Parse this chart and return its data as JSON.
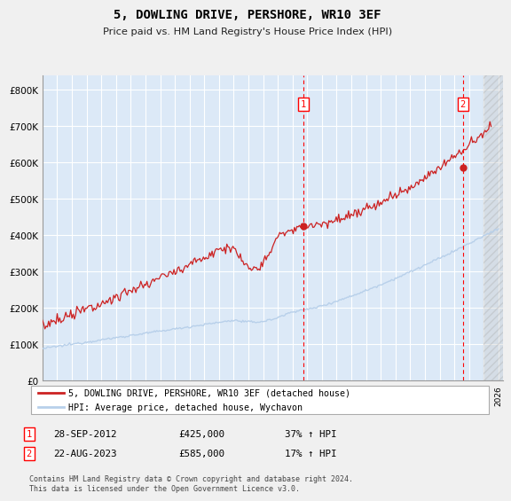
{
  "title": "5, DOWLING DRIVE, PERSHORE, WR10 3EF",
  "subtitle": "Price paid vs. HM Land Registry's House Price Index (HPI)",
  "ylim": [
    0,
    840000
  ],
  "yticks": [
    0,
    100000,
    200000,
    300000,
    400000,
    500000,
    600000,
    700000,
    800000
  ],
  "ytick_labels": [
    "£0",
    "£100K",
    "£200K",
    "£300K",
    "£400K",
    "£500K",
    "£600K",
    "£700K",
    "£800K"
  ],
  "hpi_color": "#b8d0ea",
  "price_color": "#cc2222",
  "plot_bg_color": "#dce9f7",
  "grid_color": "#ffffff",
  "event1_x": 2012.75,
  "event1_price": 425000,
  "event2_x": 2023.583,
  "event2_price": 585000,
  "legend_label_price": "5, DOWLING DRIVE, PERSHORE, WR10 3EF (detached house)",
  "legend_label_hpi": "HPI: Average price, detached house, Wychavon",
  "footnote1_date": "28-SEP-2012",
  "footnote1_price": "£425,000",
  "footnote1_hpi": "37% ↑ HPI",
  "footnote2_date": "22-AUG-2023",
  "footnote2_price": "£585,000",
  "footnote2_hpi": "17% ↑ HPI",
  "copyright": "Contains HM Land Registry data © Crown copyright and database right 2024.\nThis data is licensed under the Open Government Licence v3.0.",
  "xlim_start": 1995,
  "xlim_end": 2026.3
}
